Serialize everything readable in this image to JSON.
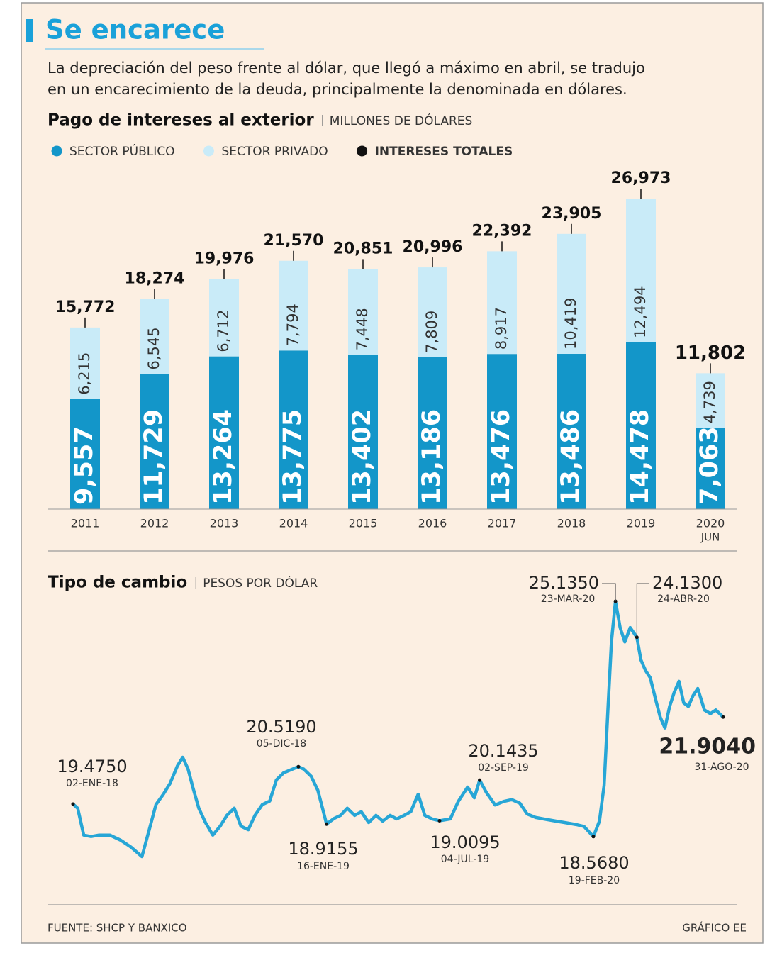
{
  "title": "Se encarece",
  "subtitle_lines": [
    "La depreciación del peso frente al dólar, que llegó a máximo en abril, se tradujo",
    "en un encarecimiento de la deuda, principalmente la denominada en dólares."
  ],
  "source": "FUENTE: SHCP Y BANXICO",
  "credit": "GRÁFICO EE",
  "chart_data": [
    {
      "type": "bar",
      "stacked": true,
      "title": "Pago de intereses al exterior",
      "unit": "MILLONES DE DÓLARES",
      "categories": [
        "2011",
        "2012",
        "2013",
        "2014",
        "2015",
        "2016",
        "2017",
        "2018",
        "2019",
        "2020"
      ],
      "period_note": "JUN",
      "series": [
        {
          "name": "SECTOR PÚBLICO",
          "color": "#1396c9",
          "values": [
            9557,
            11729,
            13264,
            13775,
            13402,
            13186,
            13476,
            13486,
            14478,
            7063
          ],
          "value_labels": [
            "9,557",
            "11,729",
            "13,264",
            "13,775",
            "13,402",
            "13,186",
            "13,476",
            "13,486",
            "14,478",
            "7,063"
          ]
        },
        {
          "name": "SECTOR PRIVADO",
          "color": "#c9ebf8",
          "values": [
            6215,
            6545,
            6712,
            7794,
            7448,
            7809,
            8917,
            10419,
            12494,
            4739
          ],
          "value_labels": [
            "6,215",
            "6,545",
            "6,712",
            "7,794",
            "7,448",
            "7,809",
            "8,917",
            "10,419",
            "12,494",
            "4,739"
          ]
        }
      ],
      "totals": {
        "name": "INTERESES TOTALES",
        "color": "#111111",
        "values": [
          15772,
          18274,
          19976,
          21570,
          20851,
          20996,
          22392,
          23905,
          26973,
          11802
        ],
        "value_labels": [
          "15,772",
          "18,274",
          "19,976",
          "21,570",
          "20,851",
          "20,996",
          "22,392",
          "23,905",
          "26,973",
          "11,802"
        ]
      }
    },
    {
      "type": "line",
      "title": "Tipo de cambio",
      "unit": "PESOS POR DÓLAR",
      "color": "#27a6d6",
      "x": [
        "2018-01-02",
        "2018-01-09",
        "2018-01-18",
        "2018-01-29",
        "2018-02-10",
        "2018-02-26",
        "2018-03-14",
        "2018-03-30",
        "2018-04-15",
        "2018-04-26",
        "2018-05-06",
        "2018-05-17",
        "2018-05-27",
        "2018-06-07",
        "2018-06-15",
        "2018-06-23",
        "2018-06-30",
        "2018-07-09",
        "2018-07-19",
        "2018-07-30",
        "2018-08-10",
        "2018-08-20",
        "2018-08-31",
        "2018-09-10",
        "2018-09-21",
        "2018-10-01",
        "2018-10-12",
        "2018-10-23",
        "2018-11-02",
        "2018-11-13",
        "2018-12-05",
        "2018-12-13",
        "2018-12-24",
        "2019-01-03",
        "2019-01-10",
        "2019-01-16",
        "2019-01-27",
        "2019-02-06",
        "2019-02-16",
        "2019-02-27",
        "2019-03-09",
        "2019-03-20",
        "2019-03-31",
        "2019-04-10",
        "2019-04-21",
        "2019-05-01",
        "2019-05-12",
        "2019-05-22",
        "2019-06-02",
        "2019-06-12",
        "2019-06-23",
        "2019-07-04",
        "2019-07-20",
        "2019-08-01",
        "2019-08-15",
        "2019-08-25",
        "2019-09-02",
        "2019-09-12",
        "2019-09-25",
        "2019-10-08",
        "2019-10-20",
        "2019-11-01",
        "2019-11-12",
        "2019-11-25",
        "2019-12-10",
        "2019-12-25",
        "2020-01-10",
        "2020-01-25",
        "2020-02-05",
        "2020-02-19",
        "2020-02-28",
        "2020-03-06",
        "2020-03-12",
        "2020-03-17",
        "2020-03-23",
        "2020-03-30",
        "2020-04-06",
        "2020-04-14",
        "2020-04-24",
        "2020-04-30",
        "2020-05-07",
        "2020-05-14",
        "2020-05-22",
        "2020-05-29",
        "2020-06-05",
        "2020-06-12",
        "2020-06-19",
        "2020-06-26",
        "2020-07-03",
        "2020-07-10",
        "2020-07-17",
        "2020-07-24",
        "2020-08-03",
        "2020-08-12",
        "2020-08-20",
        "2020-08-31"
      ],
      "values": [
        19.475,
        19.36,
        18.61,
        18.57,
        18.61,
        18.61,
        18.47,
        18.27,
        18.01,
        18.76,
        19.46,
        19.75,
        20.05,
        20.54,
        20.78,
        20.45,
        19.95,
        19.36,
        18.96,
        18.61,
        18.86,
        19.16,
        19.36,
        18.86,
        18.76,
        19.16,
        19.46,
        19.56,
        20.15,
        20.35,
        20.519,
        20.45,
        20.25,
        19.86,
        19.36,
        18.9155,
        19.07,
        19.16,
        19.36,
        19.16,
        19.26,
        18.96,
        19.16,
        19.0,
        19.16,
        19.06,
        19.16,
        19.26,
        19.75,
        19.16,
        19.06,
        19.0095,
        19.06,
        19.55,
        19.95,
        19.65,
        20.1435,
        19.8,
        19.45,
        19.55,
        19.6,
        19.5,
        19.2,
        19.1,
        19.05,
        19.0,
        18.95,
        18.9,
        18.85,
        18.568,
        19.0,
        20.0,
        22.2,
        24.0,
        25.135,
        24.4,
        24.0,
        24.4,
        24.13,
        23.5,
        23.2,
        23.0,
        22.4,
        21.9,
        21.6,
        22.2,
        22.6,
        22.9,
        22.3,
        22.2,
        22.5,
        22.7,
        22.1,
        22.0,
        22.1,
        21.904
      ],
      "annotations": [
        {
          "x": "2018-01-02",
          "value": 19.475,
          "label": "19.4750",
          "date": "02-ENE-18"
        },
        {
          "x": "2018-12-05",
          "value": 20.519,
          "label": "20.5190",
          "date": "05-DIC-18"
        },
        {
          "x": "2019-01-16",
          "value": 18.9155,
          "label": "18.9155",
          "date": "16-ENE-19"
        },
        {
          "x": "2019-07-04",
          "value": 19.0095,
          "label": "19.0095",
          "date": "04-JUL-19"
        },
        {
          "x": "2019-09-02",
          "value": 20.1435,
          "label": "20.1435",
          "date": "02-SEP-19"
        },
        {
          "x": "2020-02-19",
          "value": 18.568,
          "label": "18.5680",
          "date": "19-FEB-20"
        },
        {
          "x": "2020-03-23",
          "value": 25.135,
          "label": "25.1350",
          "date": "23-MAR-20"
        },
        {
          "x": "2020-04-24",
          "value": 24.13,
          "label": "24.1300",
          "date": "24-ABR-20"
        },
        {
          "x": "2020-08-31",
          "value": 21.904,
          "label": "21.9040",
          "date": "31-AGO-20",
          "emphasis": true
        }
      ]
    }
  ]
}
